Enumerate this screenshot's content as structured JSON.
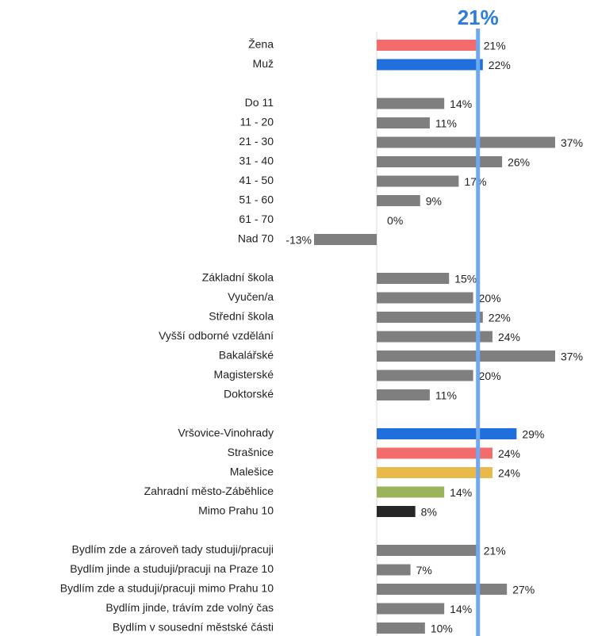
{
  "chart_data": {
    "type": "bar",
    "orientation": "horizontal",
    "xlim": [
      -13,
      37
    ],
    "reference_line": {
      "value": 21,
      "label": "21%",
      "color": "#6ea8f0",
      "label_color": "#2e7be0"
    },
    "groups": [
      {
        "categories": [
          "Žena",
          "Muž"
        ],
        "values": [
          21,
          22
        ],
        "value_labels": [
          "21%",
          "22%"
        ],
        "colors": [
          "#f46b6b",
          "#1f6fdc"
        ]
      },
      {
        "categories": [
          "Do 11",
          "11 - 20",
          "21 - 30",
          "31 - 40",
          "41 - 50",
          "51 - 60",
          "61 - 70",
          "Nad 70"
        ],
        "values": [
          14,
          11,
          37,
          26,
          17,
          9,
          0,
          -13
        ],
        "value_labels": [
          "14%",
          "11%",
          "37%",
          "26%",
          "17%",
          "9%",
          "0%",
          "-13%"
        ],
        "colors": [
          "#7f7f7f",
          "#7f7f7f",
          "#7f7f7f",
          "#7f7f7f",
          "#7f7f7f",
          "#7f7f7f",
          "#7f7f7f",
          "#7f7f7f"
        ]
      },
      {
        "categories": [
          "Základní škola",
          "Vyučen/a",
          "Střední škola",
          "Vyšší odborné vzdělání",
          "Bakalářské",
          "Magisterské",
          "Doktorské"
        ],
        "values": [
          15,
          20,
          22,
          24,
          37,
          20,
          11
        ],
        "value_labels": [
          "15%",
          "20%",
          "22%",
          "24%",
          "37%",
          "20%",
          "11%"
        ],
        "colors": [
          "#7f7f7f",
          "#7f7f7f",
          "#7f7f7f",
          "#7f7f7f",
          "#7f7f7f",
          "#7f7f7f",
          "#7f7f7f"
        ]
      },
      {
        "categories": [
          "Vršovice-Vinohrady",
          "Strašnice",
          "Malešice",
          "Zahradní město-Záběhlice",
          "Mimo Prahu 10"
        ],
        "values": [
          29,
          24,
          24,
          14,
          8
        ],
        "value_labels": [
          "29%",
          "24%",
          "24%",
          "14%",
          "8%"
        ],
        "colors": [
          "#1f6fdc",
          "#f46b6b",
          "#e9b94a",
          "#9bb35a",
          "#262626"
        ]
      },
      {
        "categories": [
          "Bydlím zde a zároveň tady studuji/pracuji",
          "Bydlím jinde a studuji/pracuji na Praze 10",
          "Bydlím zde a studuji/pracuji mimo Prahu 10",
          "Bydlím jinde, trávím zde volný čas",
          "Bydlím v sousední městské části"
        ],
        "values": [
          21,
          7,
          27,
          14,
          10
        ],
        "value_labels": [
          "21%",
          "7%",
          "27%",
          "14%",
          "10%"
        ],
        "colors": [
          "#7f7f7f",
          "#7f7f7f",
          "#7f7f7f",
          "#7f7f7f",
          "#7f7f7f"
        ]
      }
    ]
  }
}
